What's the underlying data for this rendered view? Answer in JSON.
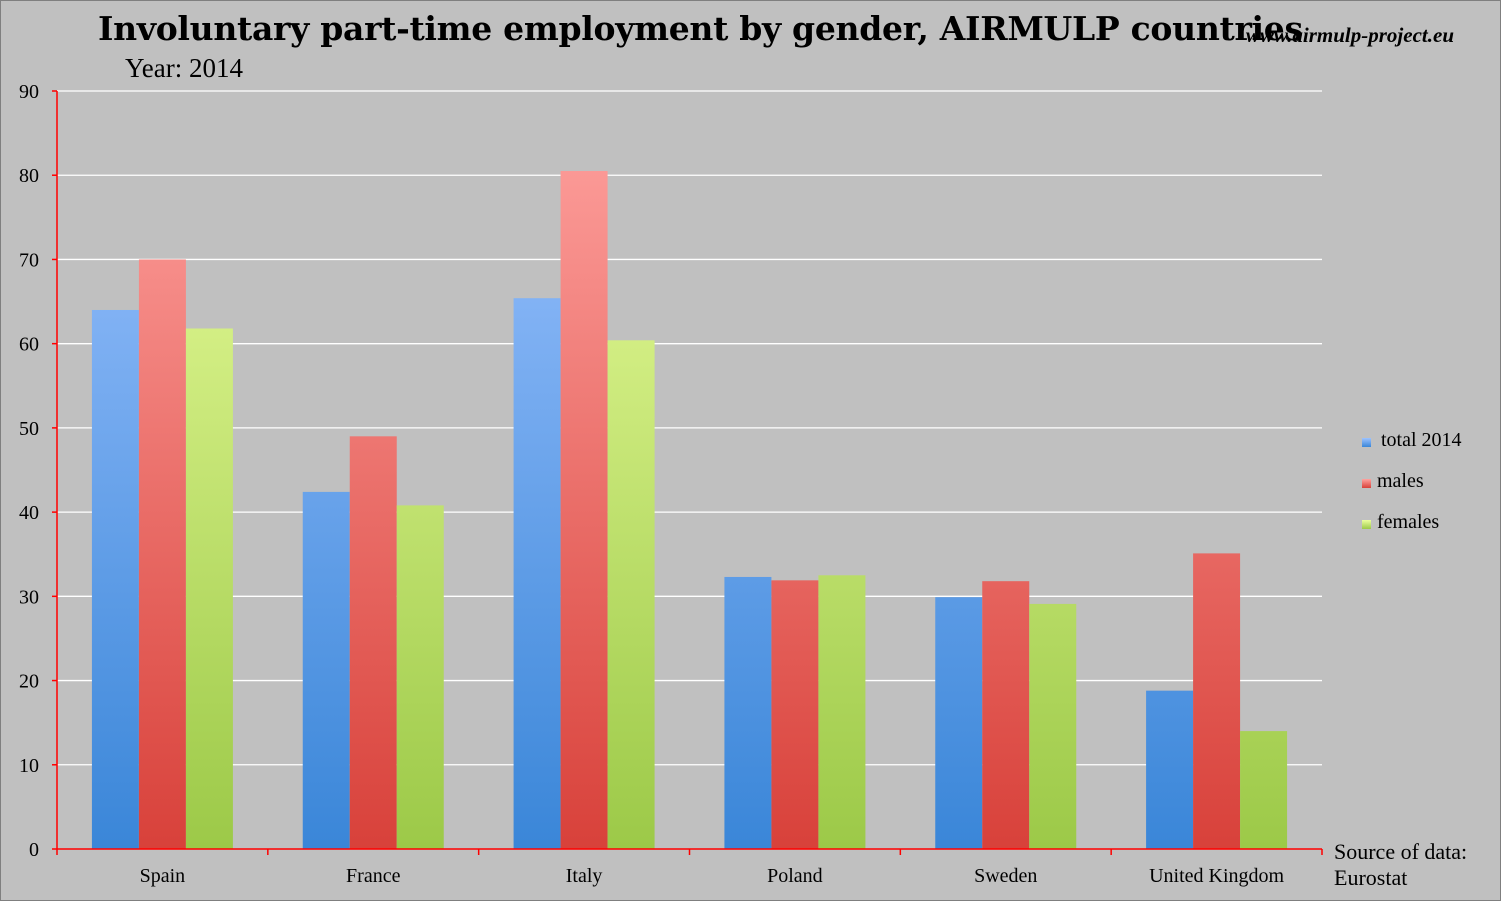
{
  "title": "Involuntary part-time employment by gender, AIRMULP countries",
  "subtitle": "Year: 2014",
  "website": "www.airmulp-project.eu",
  "source_line1": "Source of data:",
  "source_line2": "Eurostat",
  "chart_data": {
    "type": "bar",
    "title": "Involuntary part-time employment by gender, AIRMULP countries",
    "subtitle": "Year: 2014",
    "categories": [
      "Spain",
      "France",
      "Italy",
      "Poland",
      "Sweden",
      "United Kingdom"
    ],
    "series": [
      {
        "name": "total 2014",
        "values": [
          64.0,
          42.4,
          65.4,
          32.3,
          29.9,
          18.8
        ],
        "color_top": "#9dc3ff",
        "color_bottom": "#3a86d8"
      },
      {
        "name": "males",
        "values": [
          70.0,
          49.0,
          80.5,
          31.9,
          31.8,
          35.1
        ],
        "color_top": "#ffa3a0",
        "color_bottom": "#d8413a"
      },
      {
        "name": "females",
        "values": [
          61.8,
          40.8,
          60.4,
          32.5,
          29.1,
          14.0
        ],
        "color_top": "#ecff9f",
        "color_bottom": "#9cc948"
      }
    ],
    "ylim": [
      0,
      90
    ],
    "yticks": [
      0,
      10,
      20,
      30,
      40,
      50,
      60,
      70,
      80,
      90
    ],
    "xlabel": "",
    "ylabel": "",
    "grid": true,
    "legend": "right",
    "axis_color": "#ff0000"
  }
}
